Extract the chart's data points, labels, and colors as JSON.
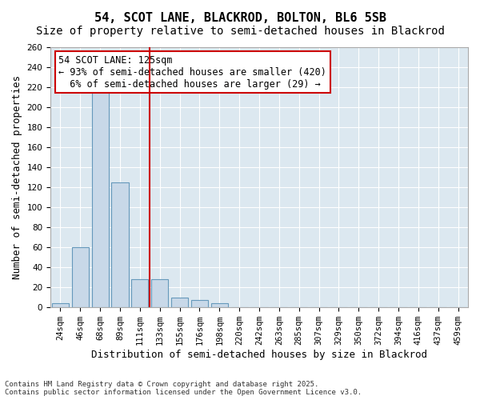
{
  "title1": "54, SCOT LANE, BLACKROD, BOLTON, BL6 5SB",
  "title2": "Size of property relative to semi-detached houses in Blackrod",
  "xlabel": "Distribution of semi-detached houses by size in Blackrod",
  "ylabel": "Number of semi-detached properties",
  "bins": [
    "24sqm",
    "46sqm",
    "68sqm",
    "89sqm",
    "111sqm",
    "133sqm",
    "155sqm",
    "176sqm",
    "198sqm",
    "220sqm",
    "242sqm",
    "263sqm",
    "285sqm",
    "307sqm",
    "329sqm",
    "350sqm",
    "372sqm",
    "394sqm",
    "416sqm",
    "437sqm",
    "459sqm"
  ],
  "values": [
    4,
    60,
    217,
    125,
    28,
    28,
    10,
    7,
    4,
    0,
    0,
    0,
    0,
    0,
    0,
    0,
    0,
    0,
    0,
    0,
    0
  ],
  "bar_color": "#c8d8e8",
  "bar_edge_color": "#6699bb",
  "vline_color": "#cc0000",
  "annotation_line1": "54 SCOT LANE: 125sqm",
  "annotation_line2": "← 93% of semi-detached houses are smaller (420)",
  "annotation_line3": "  6% of semi-detached houses are larger (29) →",
  "annotation_box_color": "#cc0000",
  "annotation_facecolor": "#ffffff",
  "ylim": [
    0,
    260
  ],
  "yticks": [
    0,
    20,
    40,
    60,
    80,
    100,
    120,
    140,
    160,
    180,
    200,
    220,
    240,
    260
  ],
  "bg_color": "#dce8f0",
  "grid_color": "#ffffff",
  "footer_line1": "Contains HM Land Registry data © Crown copyright and database right 2025.",
  "footer_line2": "Contains public sector information licensed under the Open Government Licence v3.0.",
  "title_fontsize": 11,
  "subtitle_fontsize": 10,
  "axis_label_fontsize": 9,
  "tick_fontsize": 7.5,
  "annotation_fontsize": 8.5
}
